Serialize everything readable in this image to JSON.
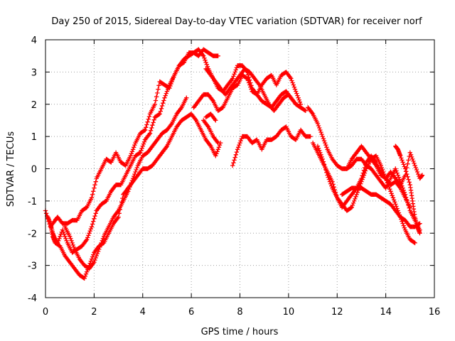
{
  "chart_data": {
    "type": "scatter",
    "title": "Day 250 of 2015, Sidereal Day-to-day VTEC variation (SDTVAR) for receiver norf",
    "xlabel": "GPS time / hours",
    "ylabel": "SDTVAR / TECUs",
    "xlim": [
      0,
      16
    ],
    "ylim": [
      -4,
      4
    ],
    "xticks": [
      "0",
      "2",
      "4",
      "6",
      "8",
      "10",
      "12",
      "14",
      "16"
    ],
    "yticks": [
      "-4",
      "-3",
      "-2",
      "-1",
      "0",
      "1",
      "2",
      "3",
      "4"
    ],
    "grid": true,
    "marker": "plus",
    "color": "#ff0000",
    "series": [
      {
        "x": [
          0.0,
          0.2,
          0.4,
          0.5,
          0.7,
          0.9,
          1.1,
          1.3,
          1.5,
          1.7,
          1.9,
          2.1,
          2.3,
          2.5,
          2.7,
          2.9,
          3.1,
          3.3,
          3.5,
          3.7,
          3.9,
          4.1,
          4.3,
          4.5,
          4.7,
          4.9,
          5.1,
          5.3,
          5.5,
          5.7,
          5.9,
          6.1,
          6.3,
          6.5,
          6.7,
          6.9,
          7.1
        ],
        "y": [
          -1.3,
          -1.8,
          -1.6,
          -1.5,
          -1.7,
          -1.7,
          -1.6,
          -1.6,
          -1.3,
          -1.2,
          -0.9,
          -0.3,
          0.0,
          0.3,
          0.2,
          0.5,
          0.2,
          0.1,
          0.4,
          0.8,
          1.1,
          1.2,
          1.7,
          2.0,
          2.7,
          2.6,
          2.5,
          2.9,
          3.2,
          3.4,
          3.5,
          3.6,
          3.5,
          3.7,
          3.6,
          3.5,
          3.5
        ]
      },
      {
        "x": [
          0.1,
          0.2,
          0.3,
          0.4,
          0.5,
          0.7,
          0.9,
          1.1,
          1.3,
          1.5,
          1.7,
          1.9,
          2.1,
          2.3,
          2.5,
          2.7,
          2.9,
          3.1,
          3.3,
          3.5,
          3.7,
          3.9,
          4.1,
          4.3,
          4.5,
          4.7,
          4.9,
          5.1,
          5.3,
          5.5,
          5.7,
          5.9,
          6.1,
          6.3,
          6.5,
          6.7,
          6.9,
          7.1,
          7.3,
          7.5,
          7.7,
          7.9,
          8.1,
          8.3,
          8.5,
          8.7,
          8.9,
          9.1,
          9.3,
          9.5,
          9.7,
          9.9,
          10.1,
          10.3,
          10.5
        ],
        "y": [
          -1.5,
          -1.7,
          -2.0,
          -2.2,
          -2.3,
          -1.9,
          -2.3,
          -2.6,
          -2.5,
          -2.4,
          -2.2,
          -1.8,
          -1.3,
          -1.1,
          -1.0,
          -0.7,
          -0.5,
          -0.5,
          -0.2,
          0.1,
          0.4,
          0.5,
          0.9,
          1.1,
          1.6,
          1.7,
          2.2,
          2.6,
          2.9,
          3.2,
          3.3,
          3.6,
          3.6,
          3.7,
          3.5,
          3.1,
          2.8,
          2.5,
          2.4,
          2.6,
          2.8,
          3.2,
          3.2,
          3.0,
          2.5,
          2.3,
          2.6,
          2.8,
          2.9,
          2.6,
          2.9,
          3.0,
          2.8,
          2.4,
          2.0
        ]
      },
      {
        "x": [
          0.2,
          0.3,
          0.4,
          0.6,
          0.8,
          1.0,
          1.2,
          1.4,
          1.6,
          1.8,
          2.0,
          2.2,
          2.4,
          2.6,
          2.8,
          3.0,
          3.2,
          3.4,
          3.6,
          3.8,
          4.0,
          4.2,
          4.4,
          4.6,
          4.8,
          5.0,
          5.2,
          5.4,
          5.6,
          5.8,
          6.0,
          6.2,
          6.4,
          6.6,
          6.8,
          7.0,
          7.2
        ],
        "y": [
          -1.7,
          -2.1,
          -2.3,
          -2.4,
          -2.7,
          -2.9,
          -3.1,
          -3.3,
          -3.4,
          -3.0,
          -2.6,
          -2.4,
          -2.3,
          -2.0,
          -1.7,
          -1.5,
          -0.8,
          -0.6,
          -0.4,
          -0.2,
          0.0,
          0.0,
          0.1,
          0.3,
          0.5,
          0.7,
          1.0,
          1.3,
          1.5,
          1.6,
          1.7,
          1.5,
          1.2,
          0.9,
          0.7,
          0.4,
          0.8
        ]
      },
      {
        "x": [
          0.8,
          1.0,
          1.2,
          1.4,
          1.6,
          1.8,
          2.0,
          2.2,
          2.4,
          2.6,
          2.8,
          3.0,
          3.2,
          3.4,
          3.6,
          3.8,
          4.0,
          4.2,
          4.4,
          4.6,
          4.8,
          5.0,
          5.2,
          5.4,
          5.6,
          5.8
        ],
        "y": [
          -1.8,
          -2.1,
          -2.5,
          -2.8,
          -3.0,
          -3.1,
          -2.9,
          -2.5,
          -2.1,
          -1.8,
          -1.5,
          -1.3,
          -1.0,
          -0.7,
          -0.3,
          0.1,
          0.4,
          0.5,
          0.7,
          0.9,
          1.1,
          1.2,
          1.4,
          1.7,
          1.9,
          2.2
        ]
      },
      {
        "x": [
          6.1,
          6.3,
          6.5,
          6.7,
          6.9,
          7.1,
          7.3,
          7.5,
          7.7,
          7.9,
          8.1,
          8.3,
          8.5,
          8.7,
          8.9,
          9.1,
          9.3,
          9.5,
          9.7,
          9.9,
          10.1,
          10.3,
          10.5,
          10.7
        ],
        "y": [
          1.9,
          2.1,
          2.3,
          2.3,
          2.1,
          1.8,
          1.9,
          2.2,
          2.5,
          2.6,
          2.9,
          2.8,
          2.4,
          2.3,
          2.1,
          2.0,
          1.9,
          2.1,
          2.3,
          2.4,
          2.2,
          2.0,
          1.9,
          1.8
        ]
      },
      {
        "x": [
          6.6,
          6.8,
          7.0,
          7.2,
          7.4,
          7.6,
          7.8,
          8.0,
          8.2,
          8.4,
          8.6,
          8.8,
          9.0,
          9.2,
          9.4,
          9.6,
          9.8,
          10.0,
          10.2
        ],
        "y": [
          3.1,
          2.9,
          2.7,
          2.5,
          2.3,
          2.5,
          2.7,
          2.9,
          3.1,
          3.0,
          2.8,
          2.6,
          2.3,
          2.0,
          1.8,
          2.0,
          2.2,
          2.3,
          2.1
        ]
      },
      {
        "x": [
          6.5,
          6.7,
          6.9,
          7.1
        ],
        "y": [
          1.5,
          1.3,
          1.0,
          0.8
        ]
      },
      {
        "x": [
          6.6,
          6.8,
          7.0
        ],
        "y": [
          1.6,
          1.7,
          1.5
        ]
      },
      {
        "x": [
          7.7,
          7.9,
          8.1,
          8.3,
          8.5,
          8.7,
          8.9,
          9.1,
          9.3,
          9.5,
          9.7,
          9.9,
          10.1,
          10.3,
          10.5,
          10.7,
          10.9
        ],
        "y": [
          0.1,
          0.6,
          1.0,
          1.0,
          0.8,
          0.9,
          0.6,
          0.9,
          0.9,
          1.0,
          1.2,
          1.3,
          1.0,
          0.9,
          1.2,
          1.0,
          1.0
        ]
      },
      {
        "x": [
          10.8,
          11.0,
          11.2,
          11.4,
          11.6,
          11.8,
          12.0,
          12.2,
          12.4,
          12.6,
          12.8,
          13.0,
          13.2,
          13.4,
          13.6,
          13.8,
          14.0,
          14.2,
          14.4,
          14.6,
          14.8,
          15.0,
          15.2,
          15.4
        ],
        "y": [
          1.9,
          1.7,
          1.4,
          1.0,
          0.6,
          0.3,
          0.1,
          0.0,
          0.0,
          0.1,
          0.3,
          0.3,
          0.1,
          0.0,
          -0.2,
          -0.4,
          -0.6,
          -0.3,
          0.0,
          -0.4,
          -0.8,
          -1.3,
          -1.6,
          -1.9
        ]
      },
      {
        "x": [
          11.0,
          11.2,
          11.4,
          11.6,
          11.8,
          12.0,
          12.2,
          12.4,
          12.6,
          12.8,
          13.0,
          13.2,
          13.4,
          13.6,
          13.8,
          14.0,
          14.2,
          14.4,
          14.6,
          14.8,
          15.0
        ],
        "y": [
          0.8,
          0.5,
          0.2,
          -0.1,
          -0.4,
          -0.9,
          -1.2,
          -1.0,
          -0.8,
          -0.6,
          -0.3,
          0.2,
          0.4,
          0.2,
          -0.1,
          -0.3,
          -0.5,
          -0.4,
          -0.6,
          -0.9,
          -1.2
        ]
      },
      {
        "x": [
          11.2,
          11.4,
          11.6,
          11.8,
          12.0,
          12.2,
          12.4,
          12.6,
          12.8,
          13.0,
          13.2,
          13.4,
          13.6,
          13.8,
          14.0,
          14.2,
          14.4,
          14.6,
          14.8,
          15.0,
          15.2
        ],
        "y": [
          0.7,
          0.3,
          -0.2,
          -0.6,
          -0.9,
          -1.1,
          -1.3,
          -1.2,
          -0.8,
          -0.4,
          0.0,
          0.3,
          0.4,
          0.1,
          -0.3,
          -0.7,
          -1.1,
          -1.5,
          -1.9,
          -2.2,
          -2.3
        ]
      },
      {
        "x": [
          12.2,
          12.4,
          12.6,
          12.8,
          13.0,
          13.2,
          13.4,
          13.6,
          13.8,
          14.0,
          14.2,
          14.4,
          14.6,
          14.8,
          15.0,
          15.2,
          15.4
        ],
        "y": [
          -0.8,
          -0.7,
          -0.6,
          -0.6,
          -0.6,
          -0.7,
          -0.8,
          -0.8,
          -0.9,
          -1.0,
          -1.1,
          -1.3,
          -1.5,
          -1.6,
          -1.8,
          -1.8,
          -1.7
        ]
      },
      {
        "x": [
          12.4,
          12.6,
          12.8,
          13.0,
          13.2,
          13.4,
          13.6,
          13.8,
          14.0,
          14.2,
          14.4,
          14.6,
          14.8,
          15.0,
          15.2,
          15.4,
          15.5
        ],
        "y": [
          0.0,
          0.3,
          0.5,
          0.7,
          0.5,
          0.3,
          0.1,
          -0.2,
          -0.3,
          -0.1,
          -0.3,
          -0.5,
          -0.2,
          0.5,
          0.1,
          -0.3,
          -0.2
        ]
      },
      {
        "x": [
          14.4,
          14.5,
          14.6,
          14.8,
          15.0,
          15.1,
          15.2,
          15.3,
          15.4
        ],
        "y": [
          0.7,
          0.6,
          0.4,
          0.0,
          -0.5,
          -1.0,
          -1.5,
          -1.8,
          -2.0
        ]
      }
    ]
  }
}
